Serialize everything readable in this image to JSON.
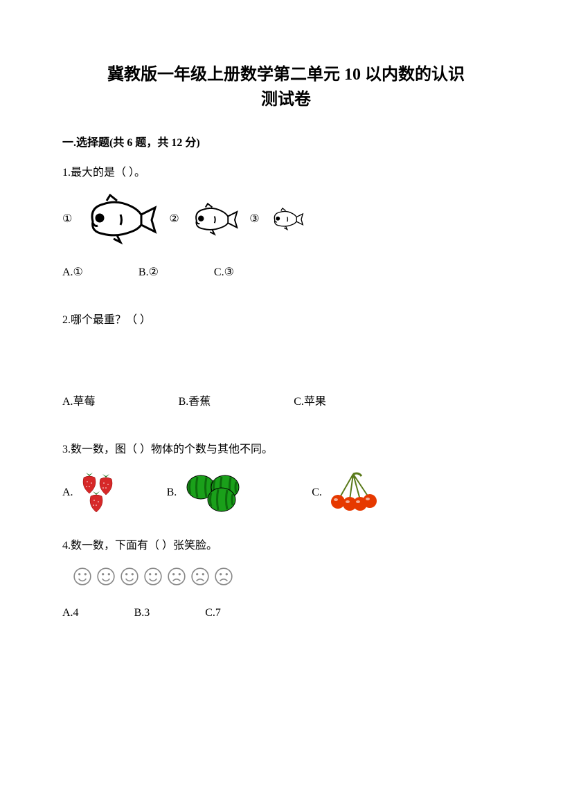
{
  "title_line1": "冀教版一年级上册数学第二单元 10 以内数的认识",
  "title_line2": "测试卷",
  "section1": "一.选择题(共 6 题，共 12 分)",
  "q1": {
    "text": "1.最大的是（        ）。",
    "labels": [
      "①",
      "②",
      "③"
    ],
    "options": [
      "A.①",
      "B.②",
      "C.③"
    ],
    "fish_sizes": [
      1.0,
      0.65,
      0.45
    ],
    "fish_color": "#000000"
  },
  "q2": {
    "text": "2.哪个最重？（        ）",
    "options": [
      "A.草莓",
      "B.香蕉",
      "C.苹果"
    ]
  },
  "q3": {
    "text": "3.数一数，图（        ）物体的个数与其他不同。",
    "options": [
      "A.",
      "B.",
      "C."
    ],
    "strawberry_color": "#d62828",
    "strawberry_leaf": "#2a7a2a",
    "watermelon_color": "#1aa01a",
    "watermelon_dark": "#0d6b0d",
    "cherry_color": "#e63900",
    "cherry_stem": "#5a7a1a"
  },
  "q4": {
    "text": "4.数一数，下面有（        ）张笑脸。",
    "options": [
      "A.4",
      "B.3",
      "C.7"
    ],
    "face_count": 7,
    "smile_count": 4,
    "face_stroke": "#888888"
  }
}
